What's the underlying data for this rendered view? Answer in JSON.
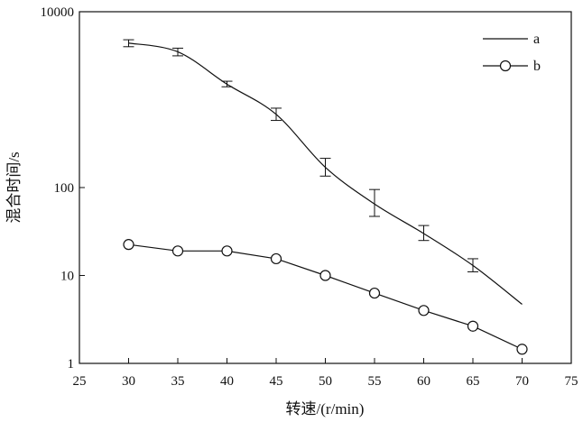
{
  "chart_data": {
    "type": "line",
    "title": "",
    "xlabel": "转速/(r/min)",
    "ylabel": "混合时间/s",
    "xlim": [
      25,
      75
    ],
    "ylim": [
      1,
      10000
    ],
    "y_scale": "log",
    "x_ticks": [
      25,
      30,
      35,
      40,
      45,
      50,
      55,
      60,
      65,
      70,
      75
    ],
    "x_tick_labels": [
      "25",
      "30",
      "35",
      "40",
      "45",
      "50",
      "55",
      "60",
      "65",
      "70",
      "75"
    ],
    "y_ticks": [
      1,
      10,
      100,
      10000
    ],
    "y_tick_labels": [
      "1",
      "10",
      "100",
      "10000"
    ],
    "grid": false,
    "legend_position": "top-right",
    "series": [
      {
        "name": "a",
        "marker": "none",
        "x": [
          30,
          35,
          40,
          45,
          50,
          55,
          60,
          65,
          70
        ],
        "y": [
          4400,
          3500,
          1500,
          680,
          170,
          65,
          30,
          13,
          4.7
        ],
        "error_low": [
          4000,
          3150,
          1400,
          580,
          135,
          47,
          25,
          11,
          null
        ],
        "error_high": [
          4800,
          3850,
          1620,
          800,
          215,
          95,
          37,
          15.5,
          null
        ]
      },
      {
        "name": "b",
        "marker": "circle",
        "x": [
          30,
          35,
          40,
          45,
          50,
          55,
          60,
          65,
          70
        ],
        "y": [
          22.5,
          19,
          19,
          15.5,
          10,
          6.3,
          4,
          2.65,
          1.45
        ]
      }
    ]
  }
}
